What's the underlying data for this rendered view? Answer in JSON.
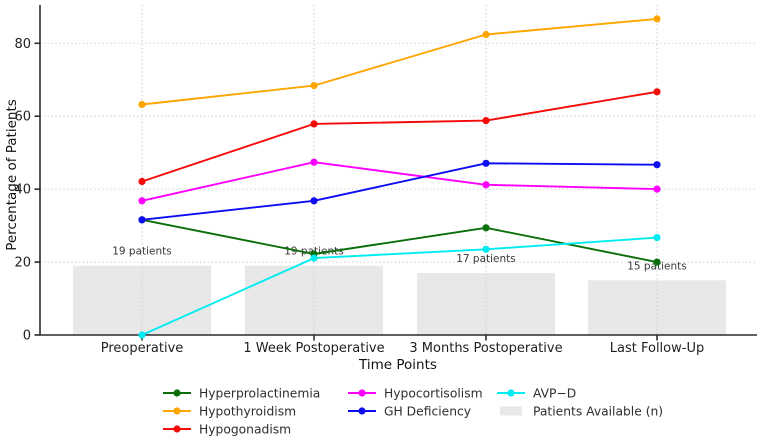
{
  "chart_data": {
    "type": "line",
    "title": "",
    "xlabel": "Time Points",
    "ylabel": "Percentage of Patients",
    "categories": [
      "Preoperative",
      "1 Week Postoperative",
      "3 Months Postoperative",
      "Last Follow-Up"
    ],
    "yticks": [
      0,
      20,
      40,
      60,
      80
    ],
    "ylim": [
      0,
      90.5
    ],
    "grid": true,
    "legend_position": "bottom",
    "series": [
      {
        "name": "Hyperprolactinemia",
        "color": "#0b6e0b",
        "values": [
          31.6,
          22.2,
          29.4,
          20.0
        ]
      },
      {
        "name": "Hypothyroidism",
        "color": "#ffa500",
        "values": [
          63.2,
          68.4,
          82.4,
          86.7
        ]
      },
      {
        "name": "Hypogonadism",
        "color": "#f50a0a",
        "values": [
          42.1,
          57.9,
          58.8,
          66.7
        ]
      },
      {
        "name": "Hypocortisolism",
        "color": "#ff00ff",
        "values": [
          36.8,
          47.4,
          41.2,
          40.0
        ]
      },
      {
        "name": "GH Deficiency",
        "color": "#0d0df2",
        "values": [
          31.6,
          36.8,
          47.1,
          46.7
        ]
      },
      {
        "name": "AVP−D",
        "color": "#00ecf2",
        "values": [
          0.0,
          21.1,
          23.5,
          26.7
        ]
      }
    ],
    "bars": {
      "name": "Patients Available (n)",
      "color": "#e8e8e8",
      "values": [
        19,
        19,
        17,
        15
      ],
      "annotations": [
        "19 patients",
        "19 patients",
        "17 patients",
        "15 patients"
      ]
    },
    "colors": {
      "grid": "#cbcbcb",
      "spine": "#2b2b2b",
      "annotation_text": "#383838"
    }
  }
}
